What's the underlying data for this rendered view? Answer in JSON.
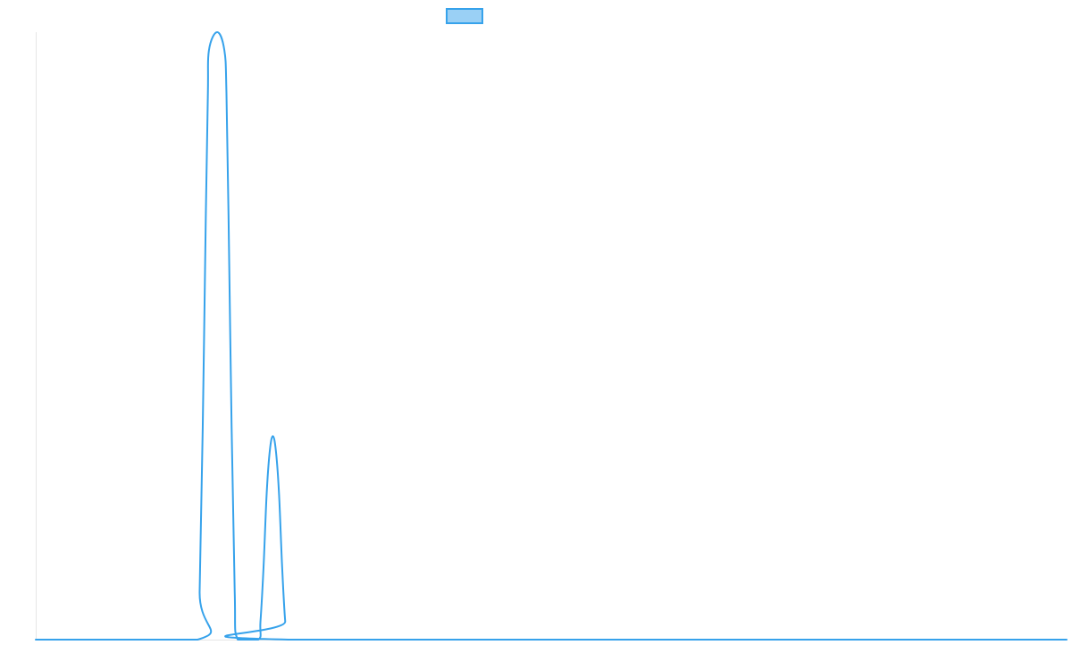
{
  "chart_data": {
    "type": "line",
    "title": "",
    "xlabel": "",
    "ylabel": "",
    "grid": false,
    "legend_placement": "top-center",
    "xlim": [
      0,
      1000
    ],
    "ylim": [
      0,
      100
    ],
    "colors": {
      "line": "#36a2eb",
      "legend_fill": "#9ad0f5",
      "axis": "#e6e6e6"
    },
    "series": [
      {
        "name": "",
        "points": [
          [
            0,
            0
          ],
          [
            157,
            0
          ],
          [
            159,
            8
          ],
          [
            162,
            35
          ],
          [
            165,
            70
          ],
          [
            167,
            90
          ],
          [
            168,
            97
          ],
          [
            176,
            100
          ],
          [
            183,
            97
          ],
          [
            185,
            90
          ],
          [
            187,
            70
          ],
          [
            190,
            35
          ],
          [
            193,
            8
          ],
          [
            196,
            0
          ],
          [
            216,
            0
          ],
          [
            218,
            3
          ],
          [
            221,
            12
          ],
          [
            224,
            24
          ],
          [
            227,
            31
          ],
          [
            230,
            33.5
          ],
          [
            233,
            31
          ],
          [
            236,
            24
          ],
          [
            239,
            12
          ],
          [
            242,
            3
          ],
          [
            245,
            0
          ],
          [
            1000,
            0
          ]
        ]
      }
    ]
  }
}
